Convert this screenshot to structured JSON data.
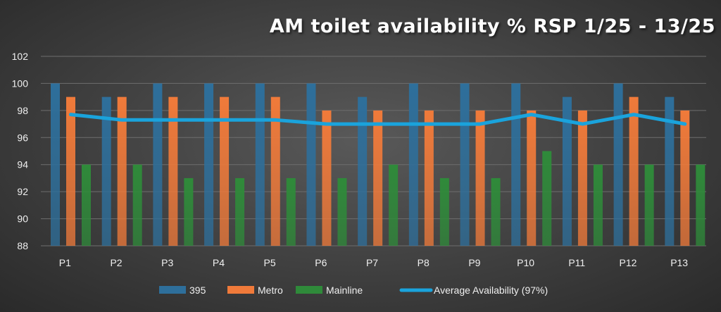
{
  "chart_data": {
    "type": "bar",
    "title": "AM toilet availability % RSP 1/25 - 13/25",
    "xlabel": "",
    "ylabel": "",
    "ylim": [
      88,
      102
    ],
    "yticks": [
      88,
      90,
      92,
      94,
      96,
      98,
      100,
      102
    ],
    "grid": true,
    "legend_position": "bottom",
    "categories": [
      "P1",
      "P2",
      "P3",
      "P4",
      "P5",
      "P6",
      "P7",
      "P8",
      "P9",
      "P10",
      "P11",
      "P12",
      "P13"
    ],
    "series": [
      {
        "name": "395",
        "kind": "bar",
        "color": "#2e6f9b",
        "values": [
          100,
          99,
          100,
          100,
          100,
          100,
          99,
          100,
          100,
          100,
          99,
          100,
          99
        ]
      },
      {
        "name": "Metro",
        "kind": "bar",
        "color": "#f07a3a",
        "values": [
          99,
          99,
          99,
          99,
          99,
          98,
          98,
          98,
          98,
          98,
          98,
          99,
          98
        ]
      },
      {
        "name": "Mainline",
        "kind": "bar",
        "color": "#2f8a3a",
        "values": [
          94,
          94,
          93,
          93,
          93,
          93,
          94,
          93,
          93,
          95,
          94,
          94,
          94
        ]
      },
      {
        "name": "Average Availability (97%)",
        "kind": "line",
        "color": "#1aa3dc",
        "values": [
          97.7,
          97.3,
          97.3,
          97.3,
          97.3,
          97.0,
          97.0,
          97.0,
          97.0,
          97.7,
          97.0,
          97.7,
          97.0
        ]
      }
    ]
  }
}
